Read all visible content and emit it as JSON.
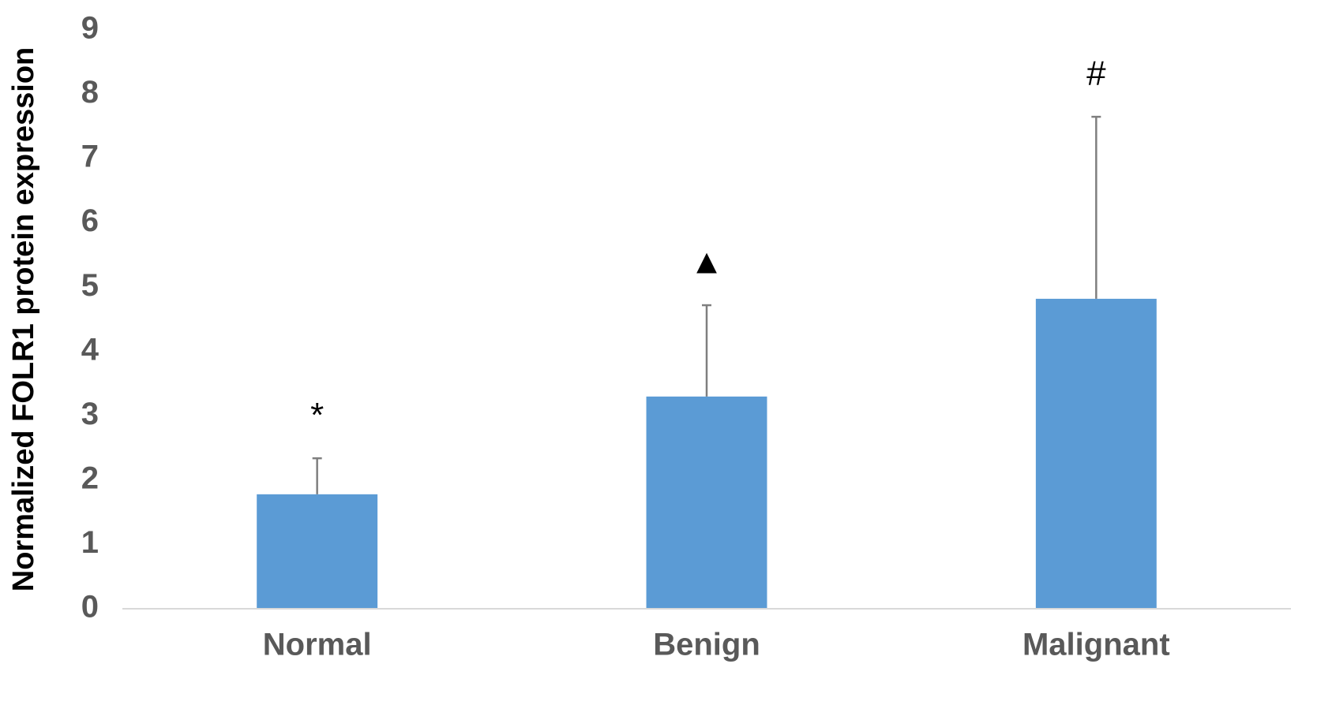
{
  "chart_data": {
    "type": "bar",
    "y_label": "Normalized FOLR1 protein expression",
    "categories": [
      "Normal",
      "Benign",
      "Malignant"
    ],
    "values": [
      1.78,
      3.3,
      4.82
    ],
    "errors": [
      0.56,
      1.42,
      2.83
    ],
    "annotations": [
      "*",
      "▲",
      "#"
    ],
    "color": "#5b9bd5",
    "error_color": "#7f7f7f",
    "ylim": [
      0,
      9
    ],
    "yticks": [
      0,
      1,
      2,
      3,
      4,
      5,
      6,
      7,
      8,
      9
    ],
    "grid": false
  }
}
